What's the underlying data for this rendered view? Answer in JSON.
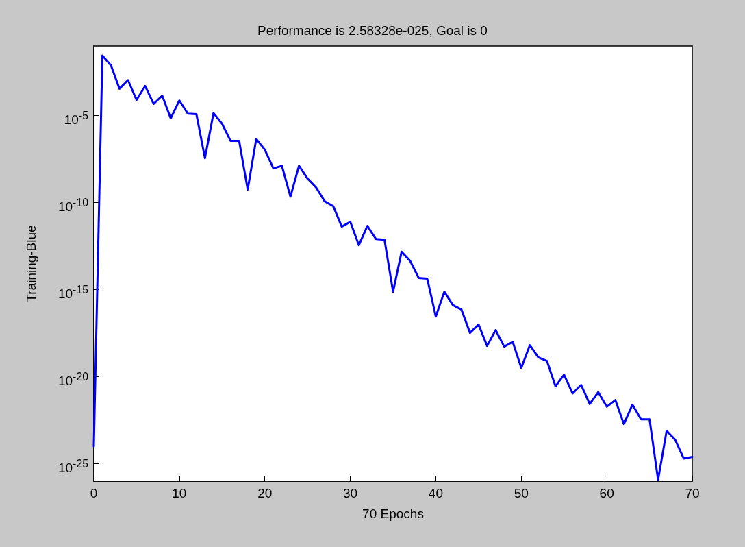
{
  "chart_data": {
    "type": "line",
    "title": "Performance is 2.58328e-025, Goal is 0",
    "xlabel": "70 Epochs",
    "ylabel": "Training-Blue",
    "log": "y",
    "grid": false,
    "marker": "none",
    "line_style": "solid",
    "x": [
      0,
      1,
      2,
      3,
      4,
      5,
      6,
      7,
      8,
      9,
      10,
      11,
      12,
      13,
      14,
      15,
      16,
      17,
      18,
      19,
      20,
      21,
      22,
      23,
      24,
      25,
      26,
      27,
      28,
      29,
      30,
      31,
      32,
      33,
      34,
      35,
      36,
      37,
      38,
      39,
      40,
      41,
      42,
      43,
      44,
      45,
      46,
      47,
      48,
      49,
      50,
      51,
      52,
      53,
      54,
      55,
      56,
      57,
      58,
      59,
      60,
      61,
      62,
      63,
      64,
      65,
      66,
      67,
      68,
      69,
      70
    ],
    "series": [
      {
        "color": "#0000ff",
        "values": [
          1e-24,
          0.028,
          0.0078,
          0.00035,
          0.0011,
          7.9e-05,
          0.0005,
          4.7e-05,
          0.00014,
          6.9e-06,
          7.4e-05,
          1.3e-05,
          1.2e-05,
          3.6e-08,
          1.4e-05,
          3.4e-06,
          3.5e-07,
          3.5e-07,
          5.6e-10,
          4.6e-07,
          1.1e-07,
          9.3e-09,
          1.3e-08,
          2.2e-10,
          1.3e-08,
          2.4e-09,
          7.4e-10,
          1.2e-10,
          6.3e-11,
          4.2e-12,
          7.9e-12,
          3.6e-13,
          4.6e-12,
          8.1e-13,
          7.4e-13,
          7.6e-16,
          1.5e-13,
          4.5e-14,
          4.7e-15,
          4.3e-15,
          2.9e-17,
          7.6e-16,
          1.3e-16,
          7.2e-17,
          3.3e-18,
          1e-17,
          5.9e-19,
          4.8e-18,
          5.4e-19,
          1e-18,
          3.2e-20,
          6.5e-19,
          1.3e-19,
          8.1e-20,
          2.8e-21,
          1.3e-20,
          1.1e-21,
          3.4e-21,
          2.7e-22,
          1.3e-21,
          1.9e-22,
          4.6e-22,
          1.9e-23,
          2.5e-22,
          3.6e-23,
          3.6e-23,
          1.2e-26,
          7.8e-24,
          2.4e-24,
          2e-25,
          2.5e-25
        ]
      }
    ],
    "xlim": [
      0,
      70
    ],
    "xticks": [
      0,
      10,
      20,
      30,
      40,
      50,
      60,
      70
    ],
    "ylim": [
      1e-26,
      0.1
    ],
    "yticks": [
      {
        "value": 1e-25,
        "label": "10$^{-25}$"
      },
      {
        "value": 1e-20,
        "label": "10$^{-20}$"
      },
      {
        "value": 1e-15,
        "label": "10$^{-15}$"
      },
      {
        "value": 1e-10,
        "label": "10$^{-10}$"
      },
      {
        "value": 1e-05,
        "label": "10$^{-5}$"
      }
    ]
  }
}
